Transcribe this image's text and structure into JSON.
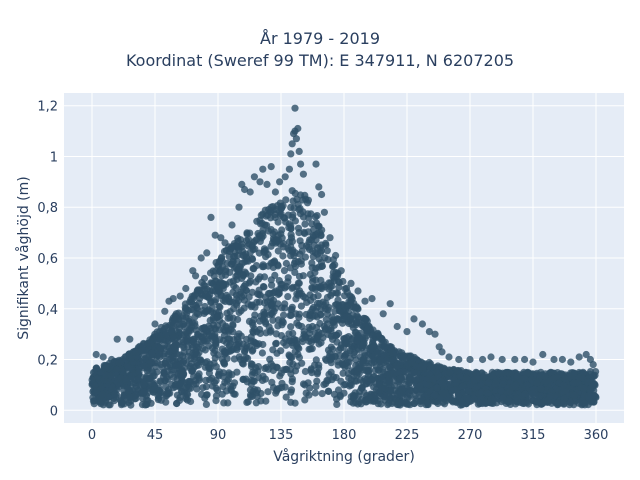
{
  "chart_data": {
    "type": "scatter",
    "title_lines": [
      "År 1979 - 2019",
      "Koordinat (Sweref 99 TM): E 347911, N 6207205"
    ],
    "xlabel": "Vågriktning (grader)",
    "ylabel": "Signifikant våghöjd (m)",
    "xlim": [
      -20,
      380
    ],
    "ylim": [
      -0.05,
      1.25
    ],
    "x_ticks": [
      0,
      45,
      90,
      135,
      180,
      225,
      270,
      315,
      360
    ],
    "x_tick_labels": [
      "0",
      "45",
      "90",
      "135",
      "180",
      "225",
      "270",
      "315",
      "360"
    ],
    "y_ticks": [
      0,
      0.2,
      0.4,
      0.6,
      0.8,
      1.0,
      1.2
    ],
    "y_tick_labels": [
      "0",
      "0,2",
      "0,4",
      "0,6",
      "0,8",
      "1",
      "1,2"
    ],
    "grid": true,
    "marker_color": "#2e5068",
    "plot_background": "#e5ecf6",
    "envelope": {
      "direction": [
        0,
        10,
        20,
        30,
        40,
        50,
        60,
        70,
        80,
        90,
        100,
        110,
        120,
        130,
        135,
        140,
        145,
        150,
        155,
        160,
        170,
        180,
        190,
        200,
        210,
        220,
        230,
        240,
        250,
        260,
        270,
        280,
        290,
        300,
        310,
        320,
        330,
        340,
        350,
        360
      ],
      "upper_height": [
        0.17,
        0.18,
        0.2,
        0.24,
        0.28,
        0.33,
        0.38,
        0.44,
        0.52,
        0.6,
        0.66,
        0.72,
        0.77,
        0.82,
        0.84,
        0.86,
        0.87,
        0.87,
        0.84,
        0.78,
        0.64,
        0.5,
        0.4,
        0.33,
        0.27,
        0.23,
        0.21,
        0.19,
        0.17,
        0.16,
        0.15,
        0.15,
        0.15,
        0.15,
        0.15,
        0.15,
        0.15,
        0.15,
        0.15,
        0.16
      ],
      "lower_height": [
        0.02,
        0.02,
        0.02,
        0.02,
        0.02,
        0.02,
        0.02,
        0.02,
        0.02,
        0.02,
        0.02,
        0.02,
        0.02,
        0.02,
        0.02,
        0.02,
        0.02,
        0.02,
        0.02,
        0.02,
        0.02,
        0.02,
        0.02,
        0.02,
        0.02,
        0.02,
        0.02,
        0.02,
        0.02,
        0.02,
        0.02,
        0.02,
        0.02,
        0.02,
        0.02,
        0.02,
        0.02,
        0.02,
        0.02,
        0.02
      ]
    },
    "outliers": [
      {
        "x": 3,
        "y": 0.22
      },
      {
        "x": 8,
        "y": 0.21
      },
      {
        "x": 14,
        "y": 0.2
      },
      {
        "x": 18,
        "y": 0.28
      },
      {
        "x": 22,
        "y": 0.2
      },
      {
        "x": 27,
        "y": 0.28
      },
      {
        "x": 32,
        "y": 0.23
      },
      {
        "x": 37,
        "y": 0.26
      },
      {
        "x": 45,
        "y": 0.34
      },
      {
        "x": 52,
        "y": 0.39
      },
      {
        "x": 55,
        "y": 0.43
      },
      {
        "x": 58,
        "y": 0.44
      },
      {
        "x": 63,
        "y": 0.45
      },
      {
        "x": 67,
        "y": 0.48
      },
      {
        "x": 72,
        "y": 0.55
      },
      {
        "x": 74,
        "y": 0.53
      },
      {
        "x": 78,
        "y": 0.6
      },
      {
        "x": 82,
        "y": 0.62
      },
      {
        "x": 85,
        "y": 0.76
      },
      {
        "x": 88,
        "y": 0.69
      },
      {
        "x": 92,
        "y": 0.68
      },
      {
        "x": 95,
        "y": 0.66
      },
      {
        "x": 100,
        "y": 0.73
      },
      {
        "x": 105,
        "y": 0.8
      },
      {
        "x": 107,
        "y": 0.89
      },
      {
        "x": 109,
        "y": 0.87
      },
      {
        "x": 113,
        "y": 0.86
      },
      {
        "x": 116,
        "y": 0.92
      },
      {
        "x": 120,
        "y": 0.9
      },
      {
        "x": 122,
        "y": 0.95
      },
      {
        "x": 125,
        "y": 0.89
      },
      {
        "x": 128,
        "y": 0.96
      },
      {
        "x": 131,
        "y": 0.86
      },
      {
        "x": 134,
        "y": 0.9
      },
      {
        "x": 138,
        "y": 0.92
      },
      {
        "x": 141,
        "y": 0.95
      },
      {
        "x": 142,
        "y": 1.01
      },
      {
        "x": 143,
        "y": 1.05
      },
      {
        "x": 144,
        "y": 1.09
      },
      {
        "x": 145,
        "y": 1.1
      },
      {
        "x": 146,
        "y": 1.07
      },
      {
        "x": 147,
        "y": 1.11
      },
      {
        "x": 148,
        "y": 1.02
      },
      {
        "x": 149,
        "y": 0.97
      },
      {
        "x": 151,
        "y": 0.93
      },
      {
        "x": 145,
        "y": 1.19
      },
      {
        "x": 160,
        "y": 0.97
      },
      {
        "x": 162,
        "y": 0.88
      },
      {
        "x": 164,
        "y": 0.85
      },
      {
        "x": 166,
        "y": 0.78
      },
      {
        "x": 170,
        "y": 0.68
      },
      {
        "x": 174,
        "y": 0.61
      },
      {
        "x": 178,
        "y": 0.55
      },
      {
        "x": 185,
        "y": 0.5
      },
      {
        "x": 190,
        "y": 0.47
      },
      {
        "x": 195,
        "y": 0.43
      },
      {
        "x": 200,
        "y": 0.44
      },
      {
        "x": 208,
        "y": 0.38
      },
      {
        "x": 213,
        "y": 0.42
      },
      {
        "x": 218,
        "y": 0.33
      },
      {
        "x": 225,
        "y": 0.31
      },
      {
        "x": 230,
        "y": 0.36
      },
      {
        "x": 236,
        "y": 0.34
      },
      {
        "x": 241,
        "y": 0.31
      },
      {
        "x": 245,
        "y": 0.3
      },
      {
        "x": 248,
        "y": 0.25
      },
      {
        "x": 250,
        "y": 0.23
      },
      {
        "x": 255,
        "y": 0.21
      },
      {
        "x": 262,
        "y": 0.2
      },
      {
        "x": 270,
        "y": 0.2
      },
      {
        "x": 279,
        "y": 0.2
      },
      {
        "x": 285,
        "y": 0.21
      },
      {
        "x": 293,
        "y": 0.2
      },
      {
        "x": 302,
        "y": 0.2
      },
      {
        "x": 309,
        "y": 0.2
      },
      {
        "x": 315,
        "y": 0.19
      },
      {
        "x": 322,
        "y": 0.22
      },
      {
        "x": 330,
        "y": 0.2
      },
      {
        "x": 336,
        "y": 0.2
      },
      {
        "x": 342,
        "y": 0.19
      },
      {
        "x": 348,
        "y": 0.21
      },
      {
        "x": 353,
        "y": 0.22
      },
      {
        "x": 356,
        "y": 0.2
      },
      {
        "x": 358,
        "y": 0.18
      }
    ]
  }
}
